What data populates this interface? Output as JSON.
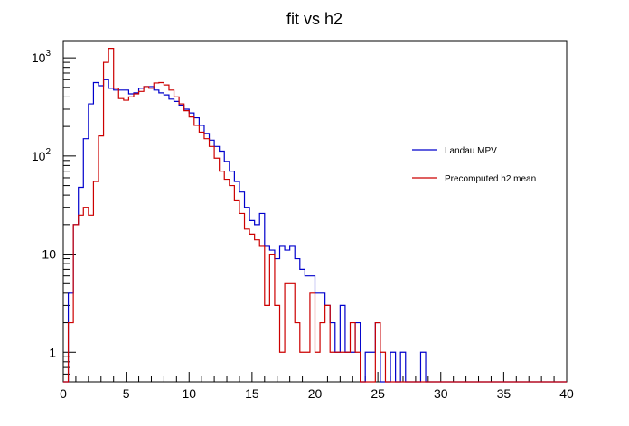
{
  "chart_data": {
    "type": "line",
    "step": true,
    "title": "fit vs h2",
    "xlabel": "",
    "ylabel": "",
    "xlim": [
      0,
      40
    ],
    "ylim": [
      0.5,
      1500
    ],
    "yscale": "log",
    "bin_width": 0.4,
    "x_ticks": [
      0,
      5,
      10,
      15,
      20,
      25,
      30,
      35,
      40
    ],
    "x_tick_labels": [
      "0",
      "5",
      "10",
      "15",
      "20",
      "25",
      "30",
      "35",
      "40"
    ],
    "y_ticks": [
      1,
      10,
      100,
      1000
    ],
    "legend_position": "right",
    "series": [
      {
        "name": "Landau MPV",
        "color": "#0000cc",
        "values": [
          0,
          4,
          20,
          48,
          150,
          340,
          560,
          520,
          600,
          490,
          470,
          470,
          470,
          430,
          440,
          490,
          510,
          510,
          470,
          440,
          420,
          380,
          360,
          330,
          300,
          275,
          245,
          205,
          170,
          145,
          125,
          112,
          88,
          70,
          55,
          43,
          30,
          22,
          20,
          26,
          12,
          11,
          9,
          12,
          11,
          12,
          9,
          7,
          6,
          6,
          4,
          4,
          3,
          2,
          1,
          3,
          1,
          1,
          2,
          0,
          1,
          1,
          2,
          0,
          0,
          1,
          0,
          1,
          0,
          0,
          0,
          1,
          0,
          0,
          0,
          0,
          0,
          0,
          0,
          0,
          0,
          0,
          0,
          0,
          0,
          0,
          0,
          0,
          0,
          0,
          0,
          0,
          0,
          0,
          0,
          0,
          0,
          0,
          0,
          0
        ]
      },
      {
        "name": "Precomputed h2 mean",
        "color": "#cc0000",
        "values": [
          0,
          2,
          20,
          25,
          30,
          25,
          55,
          160,
          900,
          1250,
          490,
          385,
          370,
          400,
          430,
          455,
          510,
          490,
          555,
          560,
          530,
          470,
          400,
          340,
          290,
          250,
          205,
          175,
          150,
          125,
          95,
          70,
          58,
          50,
          35,
          26,
          18,
          16,
          14,
          12,
          3,
          10,
          3,
          1,
          5,
          5,
          2,
          1,
          1,
          4,
          1,
          2,
          3,
          1,
          1,
          1,
          1,
          2,
          1,
          0,
          0,
          0,
          2,
          1,
          0,
          0,
          0,
          0,
          0,
          0,
          0,
          0,
          0,
          0,
          0,
          0,
          0,
          0,
          0,
          0,
          0,
          0,
          0,
          0,
          0,
          0,
          0,
          0,
          0,
          0,
          0,
          0,
          0,
          0,
          0,
          0,
          0,
          0,
          0,
          0
        ]
      }
    ]
  }
}
